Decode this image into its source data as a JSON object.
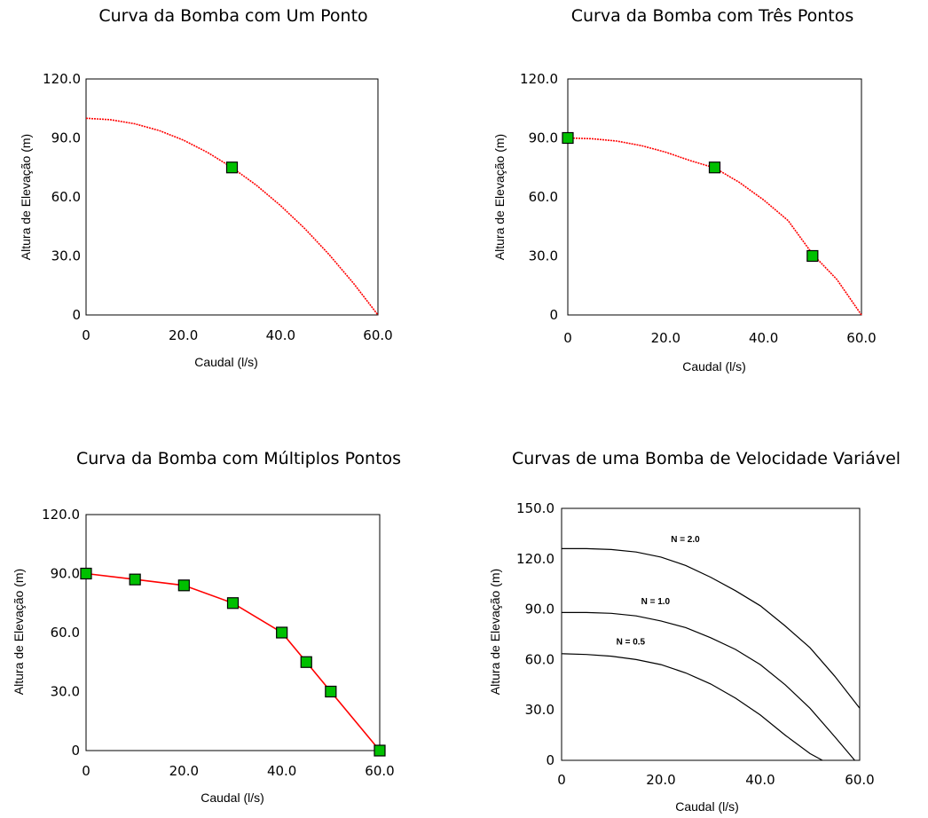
{
  "chart_data": [
    {
      "type": "line",
      "title": "Curva da Bomba com Um Ponto",
      "xlabel": "Caudal (l/s)",
      "ylabel": "Altura de Elevação (m)",
      "xlim": [
        0,
        60
      ],
      "ylim": [
        0,
        120
      ],
      "xticks": [
        0,
        20,
        40,
        60
      ],
      "yticks": [
        0,
        30,
        60,
        90,
        120
      ],
      "xtick_labels": [
        "0",
        "20.0",
        "40.0",
        "60.0"
      ],
      "ytick_labels": [
        "0",
        "30.0",
        "60.0",
        "90.0",
        "120.0"
      ],
      "grid": false,
      "curve": {
        "x": [
          0,
          5,
          10,
          15,
          20,
          25,
          30,
          35,
          40,
          45,
          50,
          55,
          60
        ],
        "y": [
          100,
          99.3,
          97.2,
          93.8,
          88.9,
          82.6,
          75,
          66,
          55.6,
          43.8,
          30.6,
          16,
          0
        ],
        "color": "#ff0000",
        "style": "dashed"
      },
      "points": {
        "x": [
          30
        ],
        "y": [
          75
        ],
        "color": "#00c000"
      }
    },
    {
      "type": "line",
      "title": "Curva da Bomba com Três Pontos",
      "xlabel": "Caudal (l/s)",
      "ylabel": "Altura de Elevação (m)",
      "xlim": [
        0,
        60
      ],
      "ylim": [
        0,
        120
      ],
      "xticks": [
        0,
        20,
        40,
        60
      ],
      "yticks": [
        0,
        30,
        60,
        90,
        120
      ],
      "xtick_labels": [
        "0",
        "20.0",
        "40.0",
        "60.0"
      ],
      "ytick_labels": [
        "0",
        "30.0",
        "60.0",
        "90.0",
        "120.0"
      ],
      "grid": false,
      "curve": {
        "x": [
          0,
          5,
          10,
          15,
          20,
          25,
          30,
          35,
          40,
          45,
          50,
          55,
          60
        ],
        "y": [
          90,
          89.6,
          88.4,
          86.1,
          82.8,
          78.5,
          74.8,
          67.5,
          58.5,
          48,
          31,
          18,
          0
        ],
        "color": "#ff0000",
        "style": "dashed"
      },
      "points": {
        "x": [
          0,
          30,
          50
        ],
        "y": [
          90,
          75,
          30
        ],
        "color": "#00c000"
      }
    },
    {
      "type": "line",
      "title": "Curva da Bomba com Múltiplos Pontos",
      "xlabel": "Caudal (l/s)",
      "ylabel": "Altura de Elevação (m)",
      "xlim": [
        0,
        60
      ],
      "ylim": [
        0,
        120
      ],
      "xticks": [
        0,
        20,
        40,
        60
      ],
      "yticks": [
        0,
        30,
        60,
        90,
        120
      ],
      "xtick_labels": [
        "0",
        "20.0",
        "40.0",
        "60.0"
      ],
      "ytick_labels": [
        "0",
        "30.0",
        "60.0",
        "90.0",
        "120.0"
      ],
      "grid": false,
      "curve": {
        "x": [
          0,
          10,
          20,
          30,
          40,
          45,
          50,
          60
        ],
        "y": [
          90,
          87,
          84,
          75,
          60,
          45,
          30,
          0
        ],
        "color": "#ff0000",
        "style": "solid"
      },
      "points": {
        "x": [
          0,
          10,
          20,
          30,
          40,
          45,
          50,
          60
        ],
        "y": [
          90,
          87,
          84,
          75,
          60,
          45,
          30,
          0
        ],
        "color": "#00c000"
      }
    },
    {
      "type": "line",
      "title": "Curvas de uma Bomba de Velocidade Variável",
      "xlabel": "Caudal (l/s)",
      "ylabel": "Altura de Elevação (m)",
      "xlim": [
        0,
        60
      ],
      "ylim": [
        0,
        150
      ],
      "xticks": [
        0,
        20,
        40,
        60
      ],
      "yticks": [
        0,
        30,
        60,
        90,
        120,
        150
      ],
      "xtick_labels": [
        "0",
        "20.0",
        "40.0",
        "60.0"
      ],
      "ytick_labels": [
        "0",
        "30.0",
        "60.0",
        "90.0",
        "120.0",
        "150.0"
      ],
      "grid": false,
      "series": [
        {
          "name": "N = 2.0",
          "x": [
            0,
            5,
            10,
            15,
            20,
            25,
            30,
            35,
            40,
            45,
            50,
            55,
            60
          ],
          "y": [
            126,
            126,
            125.5,
            124,
            121,
            116,
            109,
            101,
            92,
            80,
            67,
            50,
            31
          ],
          "color": "#000000",
          "label_at": [
            22,
            132
          ]
        },
        {
          "name": "N = 1.0",
          "x": [
            0,
            5,
            10,
            15,
            20,
            25,
            30,
            35,
            40,
            45,
            50,
            55,
            59
          ],
          "y": [
            88,
            88,
            87.5,
            86,
            83,
            79,
            73,
            66,
            57,
            45,
            31,
            14,
            0
          ],
          "color": "#000000",
          "label_at": [
            16,
            95
          ]
        },
        {
          "name": "N = 0.5",
          "x": [
            0,
            5,
            10,
            15,
            20,
            25,
            30,
            35,
            40,
            45,
            50,
            52.5
          ],
          "y": [
            63.5,
            63,
            62,
            60,
            57,
            52,
            45.5,
            37,
            27,
            15,
            4,
            0
          ],
          "color": "#000000",
          "label_at": [
            11,
            71
          ]
        }
      ]
    }
  ]
}
